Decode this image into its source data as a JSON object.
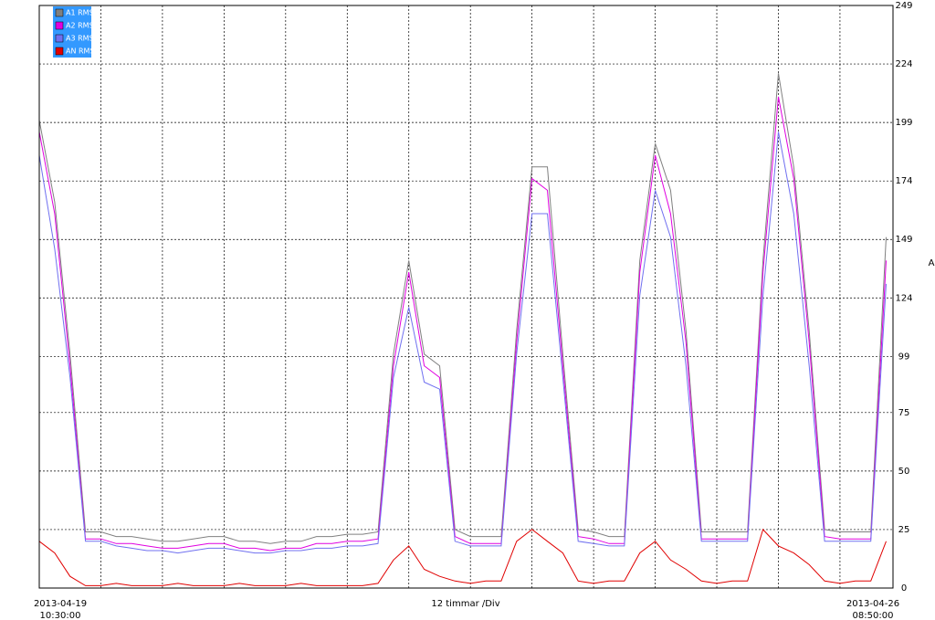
{
  "chart_data": {
    "type": "line",
    "x_start_label": [
      "2013-04-19",
      "10:30:00"
    ],
    "x_end_label": [
      "2013-04-26",
      "08:50:00"
    ],
    "x_axis_label": "12 timmar /Div",
    "y_axis_label": "A",
    "xlim": [
      0,
      166.33
    ],
    "xticks": [
      0,
      12,
      24,
      36,
      48,
      60,
      72,
      84,
      96,
      108,
      120,
      132,
      144,
      156
    ],
    "ylim": [
      0,
      249
    ],
    "yticks": [
      0,
      25,
      50,
      75,
      99,
      124,
      149,
      174,
      199,
      224,
      249
    ],
    "grid": true,
    "legend": "top-left",
    "x": [
      0,
      3,
      6,
      9,
      12,
      15,
      18,
      21,
      24,
      27,
      30,
      33,
      36,
      39,
      42,
      45,
      48,
      51,
      54,
      57,
      60,
      63,
      66,
      69,
      72,
      75,
      78,
      81,
      84,
      87,
      90,
      93,
      96,
      99,
      102,
      105,
      108,
      111,
      114,
      117,
      120,
      123,
      126,
      129,
      132,
      135,
      138,
      141,
      144,
      147,
      150,
      153,
      156,
      159,
      162,
      165
    ],
    "series": [
      {
        "name": "A1 RMS",
        "color": "#808080",
        "values": [
          200,
          165,
          100,
          24,
          24,
          22,
          22,
          21,
          20,
          20,
          21,
          22,
          22,
          20,
          20,
          19,
          20,
          20,
          22,
          22,
          23,
          23,
          24,
          100,
          140,
          100,
          95,
          25,
          22,
          22,
          22,
          110,
          180,
          180,
          100,
          25,
          24,
          22,
          22,
          140,
          190,
          170,
          110,
          24,
          24,
          24,
          24,
          140,
          220,
          180,
          110,
          25,
          24,
          24,
          24,
          150
        ]
      },
      {
        "name": "A2 RMS",
        "color": "#e000e0",
        "values": [
          195,
          160,
          95,
          21,
          21,
          19,
          19,
          18,
          17,
          17,
          18,
          19,
          19,
          17,
          17,
          16,
          17,
          17,
          19,
          19,
          20,
          20,
          21,
          95,
          135,
          95,
          90,
          22,
          19,
          19,
          19,
          105,
          175,
          170,
          95,
          22,
          21,
          19,
          19,
          135,
          185,
          160,
          105,
          21,
          21,
          21,
          21,
          135,
          210,
          175,
          105,
          22,
          21,
          21,
          21,
          140
        ]
      },
      {
        "name": "A3 RMS",
        "color": "#7070f0",
        "values": [
          185,
          145,
          90,
          20,
          20,
          18,
          17,
          16,
          16,
          15,
          16,
          17,
          17,
          16,
          15,
          15,
          16,
          16,
          17,
          17,
          18,
          18,
          19,
          90,
          120,
          88,
          85,
          20,
          18,
          18,
          18,
          100,
          160,
          160,
          90,
          20,
          19,
          18,
          18,
          125,
          170,
          150,
          95,
          20,
          20,
          20,
          20,
          125,
          195,
          160,
          95,
          20,
          20,
          20,
          20,
          130
        ]
      },
      {
        "name": "AN RMS",
        "color": "#e00000",
        "values": [
          20,
          15,
          5,
          1,
          1,
          2,
          1,
          1,
          1,
          2,
          1,
          1,
          1,
          2,
          1,
          1,
          1,
          2,
          1,
          1,
          1,
          1,
          2,
          12,
          18,
          8,
          5,
          3,
          2,
          3,
          3,
          20,
          25,
          20,
          15,
          3,
          2,
          3,
          3,
          15,
          20,
          12,
          8,
          3,
          2,
          3,
          3,
          25,
          18,
          15,
          10,
          3,
          2,
          3,
          3,
          20
        ]
      }
    ]
  }
}
